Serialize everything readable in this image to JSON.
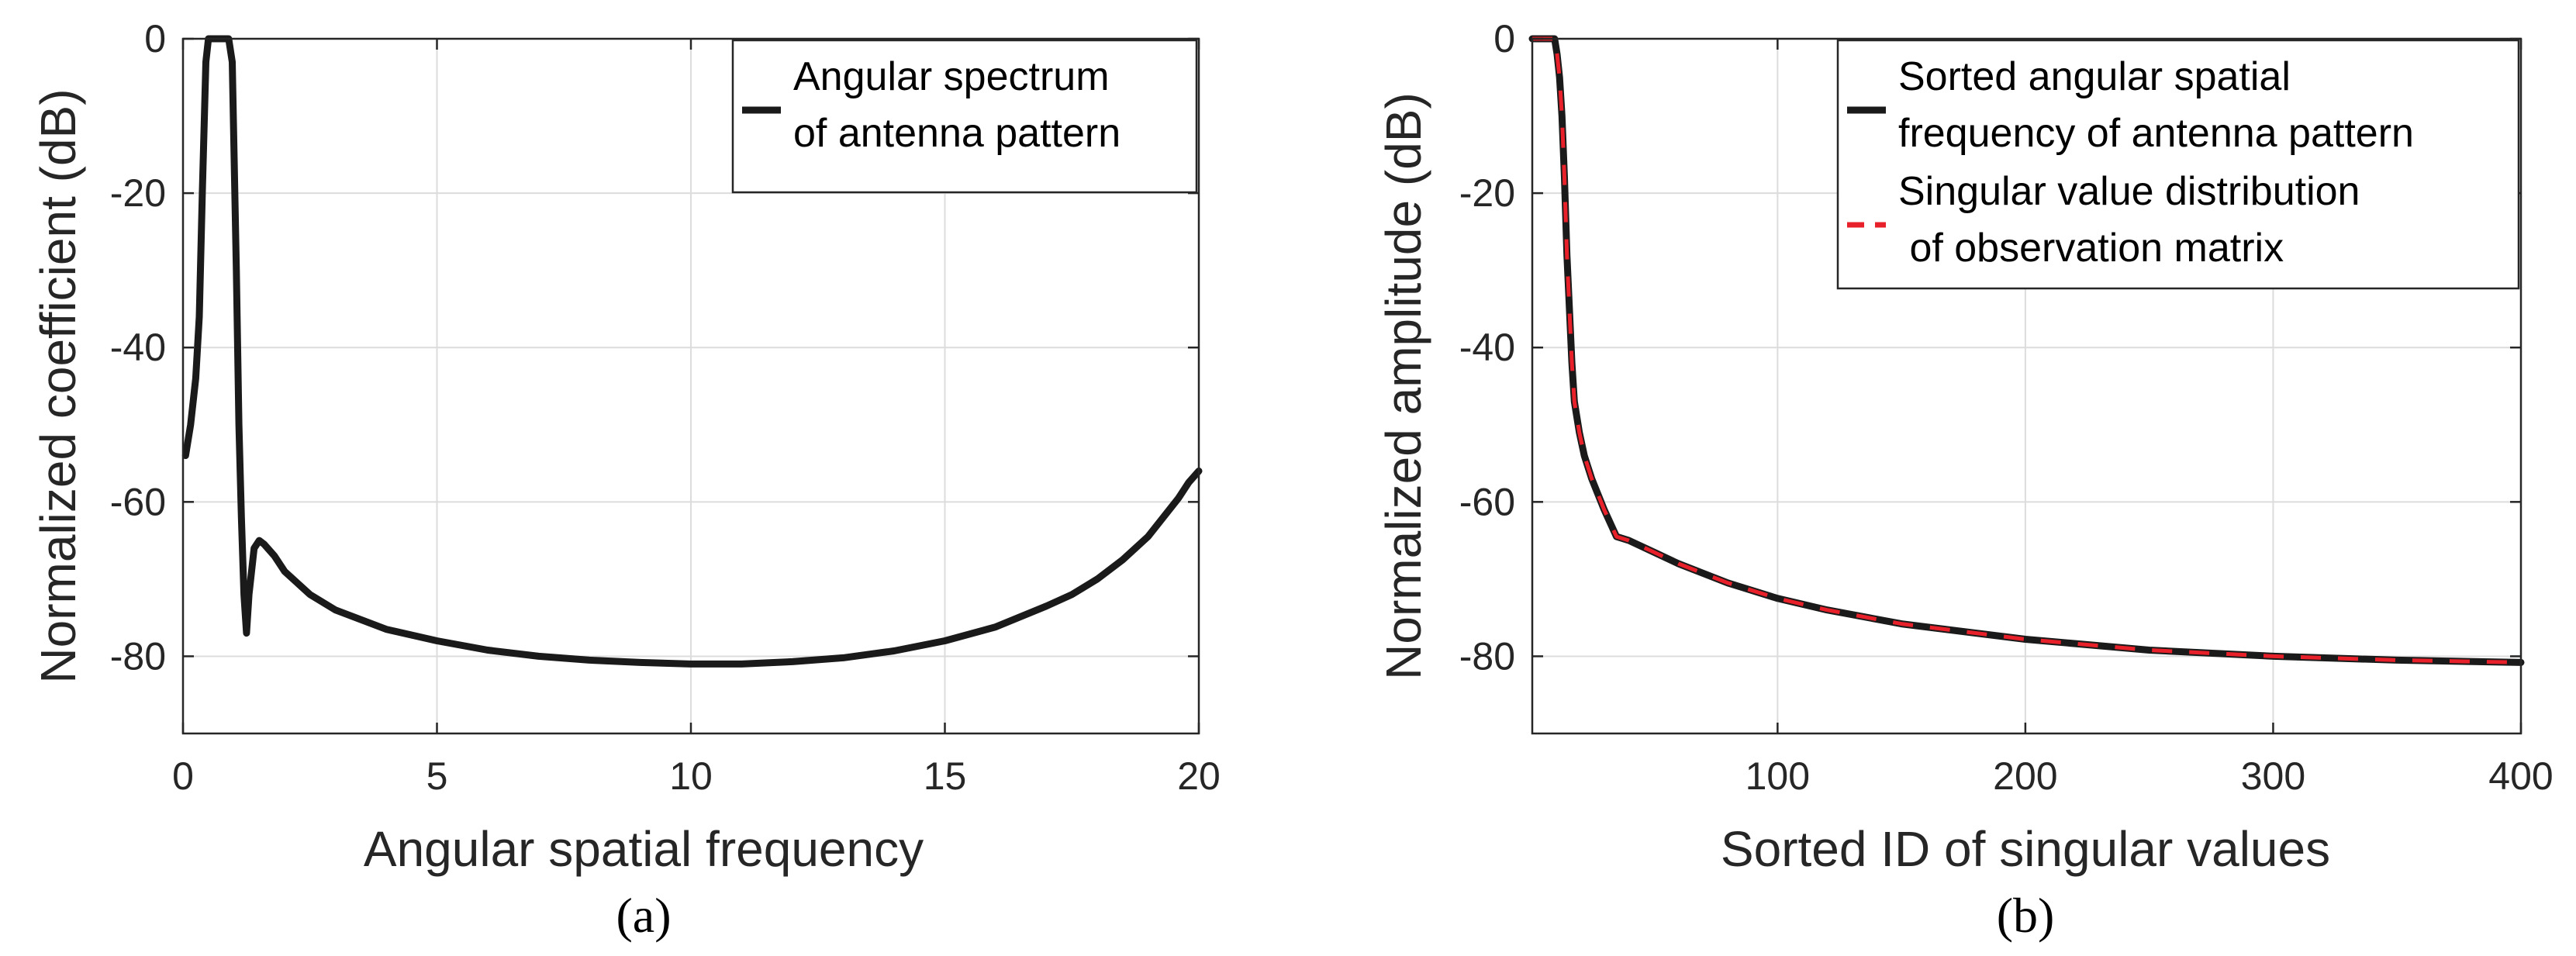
{
  "colors": {
    "black": "#1a1a1a",
    "red": "#e8202a",
    "axis": "#262626",
    "grid": "#dcdcdc"
  },
  "chart_data": [
    {
      "type": "line",
      "caption": "(a)",
      "xlabel": "Angular spatial frequency",
      "ylabel": "Normalized coefficient (dB)",
      "xlim": [
        0,
        20
      ],
      "ylim": [
        -90,
        0
      ],
      "xticks": [
        0,
        5,
        10,
        15,
        20
      ],
      "xtick_labels": [
        "0",
        "5",
        "10",
        "15",
        "20"
      ],
      "yticks": [
        0,
        -20,
        -40,
        -60,
        -80
      ],
      "ytick_labels": [
        "0",
        "-20",
        "-40",
        "-60",
        "-80"
      ],
      "grid": true,
      "legend_position": "top-right",
      "series": [
        {
          "name": "Angular spectrum of antenna pattern",
          "legend_lines": [
            "Angular spectrum",
            "of antenna pattern"
          ],
          "color": "#1a1a1a",
          "style": "solid",
          "x": [
            0.05,
            0.15,
            0.25,
            0.32,
            0.38,
            0.45,
            0.5,
            0.6,
            0.7,
            0.8,
            0.9,
            0.97,
            1.05,
            1.1,
            1.15,
            1.2,
            1.25,
            1.3,
            1.4,
            1.5,
            1.6,
            1.8,
            2.0,
            2.5,
            3.0,
            4.0,
            5.0,
            6.0,
            7.0,
            8.0,
            9.0,
            10.0,
            11.0,
            12.0,
            13.0,
            14.0,
            15.0,
            16.0,
            17.0,
            17.5,
            18.0,
            18.5,
            19.0,
            19.3,
            19.6,
            19.8,
            20.0
          ],
          "y": [
            -54,
            -50,
            -44,
            -36,
            -20,
            -3,
            0,
            0,
            0,
            0,
            0,
            -3,
            -30,
            -50,
            -62,
            -72,
            -77,
            -72,
            -66,
            -65,
            -65.5,
            -67,
            -69,
            -72,
            -74,
            -76.5,
            -78,
            -79.2,
            -80,
            -80.5,
            -80.8,
            -81,
            -81,
            -80.7,
            -80.2,
            -79.3,
            -78,
            -76.2,
            -73.5,
            -72,
            -70,
            -67.5,
            -64.5,
            -62,
            -59.5,
            -57.5,
            -56
          ]
        }
      ]
    },
    {
      "type": "line",
      "caption": "(b)",
      "xlabel": "Sorted ID of singular values",
      "ylabel": "Normalized amplitude (dB)",
      "xlim": [
        1,
        400
      ],
      "ylim": [
        -90,
        0
      ],
      "xticks": [
        100,
        200,
        300,
        400
      ],
      "xtick_labels": [
        "100",
        "200",
        "300",
        "400"
      ],
      "yticks": [
        0,
        -20,
        -40,
        -60,
        -80
      ],
      "ytick_labels": [
        "0",
        "-20",
        "-40",
        "-60",
        "-80"
      ],
      "grid": true,
      "legend_position": "top-right",
      "series": [
        {
          "name": "Sorted angular spatial frequency of antenna pattern",
          "legend_lines": [
            "Sorted angular spatial",
            "frequency of antenna pattern"
          ],
          "color": "#1a1a1a",
          "style": "solid",
          "x": [
            1,
            5,
            8,
            10,
            11,
            12,
            13,
            14,
            15,
            17,
            18,
            20,
            22,
            25,
            30,
            35,
            40,
            50,
            60,
            80,
            100,
            120,
            150,
            200,
            250,
            300,
            350,
            400
          ],
          "y": [
            0,
            0,
            0,
            0,
            -2,
            -5,
            -10,
            -18,
            -28,
            -42,
            -47,
            -51,
            -54,
            -57,
            -61,
            -64.5,
            -65,
            -66.5,
            -68,
            -70.5,
            -72.5,
            -74,
            -75.8,
            -77.8,
            -79.2,
            -80,
            -80.5,
            -80.8
          ]
        },
        {
          "name": "Singular value distribution of observation matrix",
          "legend_lines": [
            "Singular value distribution",
            " of observation matrix"
          ],
          "color": "#e8202a",
          "style": "dashed",
          "x": [
            1,
            5,
            8,
            10,
            11,
            12,
            13,
            14,
            15,
            17,
            18,
            20,
            22,
            25,
            30,
            35,
            40,
            50,
            60,
            80,
            100,
            120,
            150,
            200,
            250,
            300,
            350,
            400
          ],
          "y": [
            0,
            0,
            0,
            0,
            -2,
            -5,
            -10,
            -18,
            -28,
            -42,
            -47,
            -51,
            -54,
            -57,
            -61,
            -64.5,
            -65,
            -66.5,
            -68,
            -70.5,
            -72.5,
            -74,
            -75.8,
            -77.8,
            -79.2,
            -80,
            -80.5,
            -80.8
          ]
        }
      ]
    }
  ]
}
